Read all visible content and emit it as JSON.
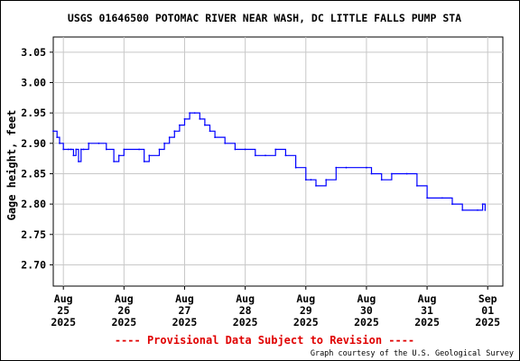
{
  "chart_data": {
    "type": "line",
    "title": "USGS 01646500 POTOMAC RIVER NEAR WASH, DC LITTLE FALLS PUMP STA",
    "ylabel": "Gage height, feet",
    "xlabel": "",
    "ylim": [
      2.665,
      3.075
    ],
    "yticks": [
      2.7,
      2.75,
      2.8,
      2.85,
      2.9,
      2.95,
      3.0,
      3.05
    ],
    "ytick_labels": [
      "2.70",
      "2.75",
      "2.80",
      "2.85",
      "2.90",
      "2.95",
      "3.00",
      "3.05"
    ],
    "xlim": [
      "2025-08-24T20:00",
      "2025-09-01T06:00"
    ],
    "xticks": [
      {
        "date": "2025-08-25",
        "month": "Aug",
        "day": "25",
        "year": "2025"
      },
      {
        "date": "2025-08-26",
        "month": "Aug",
        "day": "26",
        "year": "2025"
      },
      {
        "date": "2025-08-27",
        "month": "Aug",
        "day": "27",
        "year": "2025"
      },
      {
        "date": "2025-08-28",
        "month": "Aug",
        "day": "28",
        "year": "2025"
      },
      {
        "date": "2025-08-29",
        "month": "Aug",
        "day": "29",
        "year": "2025"
      },
      {
        "date": "2025-08-30",
        "month": "Aug",
        "day": "30",
        "year": "2025"
      },
      {
        "date": "2025-08-31",
        "month": "Aug",
        "day": "31",
        "year": "2025"
      },
      {
        "date": "2025-09-01",
        "month": "Sep",
        "day": "01",
        "year": "2025"
      }
    ],
    "grid": true,
    "line_color": "#0000ff",
    "series": [
      {
        "values": [
          [
            "2025-08-24T20:00",
            2.92
          ],
          [
            "2025-08-24T21:30",
            2.91
          ],
          [
            "2025-08-24T22:30",
            2.9
          ],
          [
            "2025-08-25T00:00",
            2.89
          ],
          [
            "2025-08-25T02:00",
            2.89
          ],
          [
            "2025-08-25T03:00",
            2.89
          ],
          [
            "2025-08-25T04:00",
            2.88
          ],
          [
            "2025-08-25T05:00",
            2.89
          ],
          [
            "2025-08-25T06:00",
            2.87
          ],
          [
            "2025-08-25T07:00",
            2.89
          ],
          [
            "2025-08-25T08:00",
            2.89
          ],
          [
            "2025-08-25T10:00",
            2.9
          ],
          [
            "2025-08-25T14:00",
            2.9
          ],
          [
            "2025-08-25T17:00",
            2.89
          ],
          [
            "2025-08-25T20:00",
            2.87
          ],
          [
            "2025-08-25T22:00",
            2.88
          ],
          [
            "2025-08-26T00:00",
            2.89
          ],
          [
            "2025-08-26T06:00",
            2.89
          ],
          [
            "2025-08-26T08:00",
            2.87
          ],
          [
            "2025-08-26T10:00",
            2.88
          ],
          [
            "2025-08-26T14:00",
            2.89
          ],
          [
            "2025-08-26T16:00",
            2.9
          ],
          [
            "2025-08-26T18:00",
            2.91
          ],
          [
            "2025-08-26T20:00",
            2.92
          ],
          [
            "2025-08-26T22:00",
            2.93
          ],
          [
            "2025-08-27T00:00",
            2.94
          ],
          [
            "2025-08-27T02:00",
            2.95
          ],
          [
            "2025-08-27T04:00",
            2.95
          ],
          [
            "2025-08-27T06:00",
            2.94
          ],
          [
            "2025-08-27T08:00",
            2.93
          ],
          [
            "2025-08-27T10:00",
            2.92
          ],
          [
            "2025-08-27T12:00",
            2.91
          ],
          [
            "2025-08-27T16:00",
            2.9
          ],
          [
            "2025-08-27T20:00",
            2.89
          ],
          [
            "2025-08-28T00:00",
            2.89
          ],
          [
            "2025-08-28T04:00",
            2.88
          ],
          [
            "2025-08-28T08:00",
            2.88
          ],
          [
            "2025-08-28T12:00",
            2.89
          ],
          [
            "2025-08-28T16:00",
            2.88
          ],
          [
            "2025-08-28T20:00",
            2.86
          ],
          [
            "2025-08-29T00:00",
            2.84
          ],
          [
            "2025-08-29T02:00",
            2.84
          ],
          [
            "2025-08-29T04:00",
            2.83
          ],
          [
            "2025-08-29T08:00",
            2.84
          ],
          [
            "2025-08-29T12:00",
            2.86
          ],
          [
            "2025-08-29T16:00",
            2.86
          ],
          [
            "2025-08-30T00:00",
            2.86
          ],
          [
            "2025-08-30T02:00",
            2.85
          ],
          [
            "2025-08-30T06:00",
            2.84
          ],
          [
            "2025-08-30T10:00",
            2.85
          ],
          [
            "2025-08-30T16:00",
            2.85
          ],
          [
            "2025-08-30T20:00",
            2.83
          ],
          [
            "2025-08-31T00:00",
            2.81
          ],
          [
            "2025-08-31T06:00",
            2.81
          ],
          [
            "2025-08-31T10:00",
            2.8
          ],
          [
            "2025-08-31T14:00",
            2.79
          ],
          [
            "2025-08-31T20:00",
            2.79
          ],
          [
            "2025-08-31T22:00",
            2.8
          ],
          [
            "2025-08-31T23:00",
            2.79
          ]
        ]
      }
    ],
    "annotations": {
      "provisional": "---- Provisional Data Subject to Revision ----",
      "credit": "Graph courtesy of the U.S. Geological Survey"
    }
  }
}
